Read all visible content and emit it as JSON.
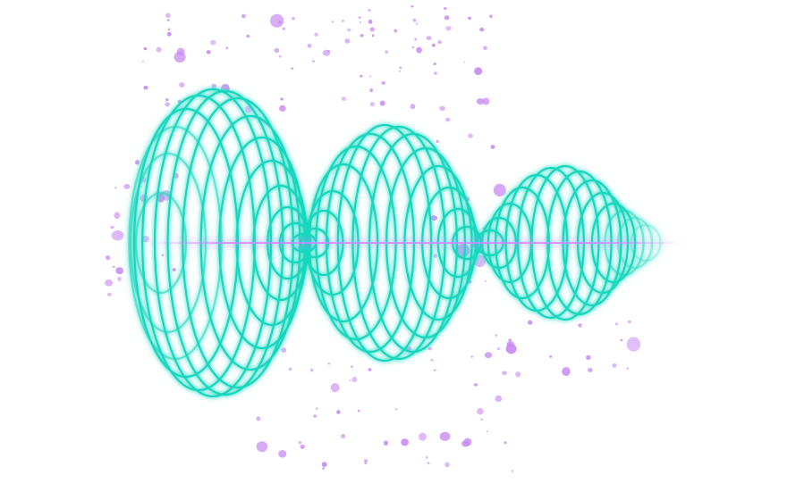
{
  "image": {
    "subject": "glowing-sound-wave-rings",
    "colors": {
      "background": "#ffffff",
      "ring": "#19d6be",
      "ring_glow": "#7ff0df",
      "particle": "#c98cf2",
      "center_line": "#c78bff"
    }
  }
}
